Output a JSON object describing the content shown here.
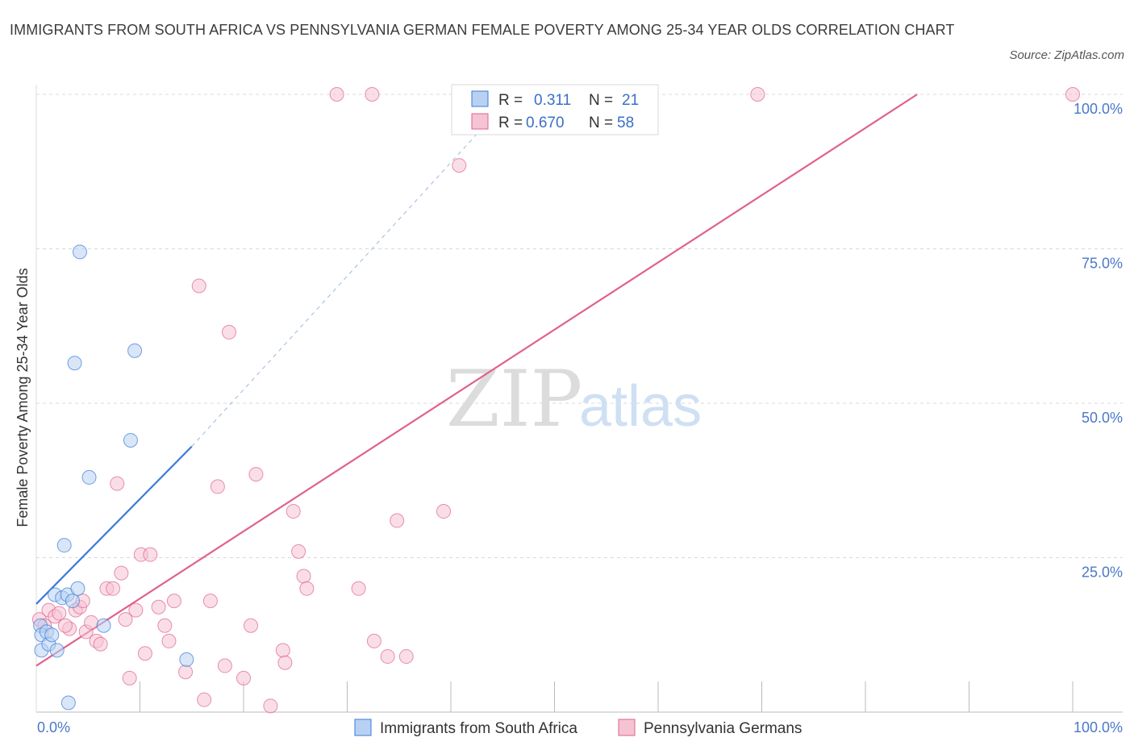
{
  "title": "IMMIGRANTS FROM SOUTH AFRICA VS PENNSYLVANIA GERMAN FEMALE POVERTY AMONG 25-34 YEAR OLDS CORRELATION CHART",
  "source": "Source: ZipAtlas.com",
  "watermark": {
    "zip": "ZIP",
    "atlas": "atlas"
  },
  "colors": {
    "blue": "#3a7bd5",
    "blue_fill": "#b8d1f3",
    "pink": "#e0628c",
    "pink_fill": "#f6c3d3",
    "grid": "#d9d9d9",
    "tick_text": "#4a78c8"
  },
  "legend": {
    "r_label": "R =",
    "n_label": "N =",
    "entries": [
      {
        "r": "0.311",
        "n": "21"
      },
      {
        "r": "0.670",
        "n": "58"
      }
    ]
  },
  "chart_data": {
    "type": "scatter",
    "title": "IMMIGRANTS FROM SOUTH AFRICA VS PENNSYLVANIA GERMAN FEMALE POVERTY AMONG 25-34 YEAR OLDS CORRELATION CHART",
    "xlabel": "",
    "ylabel": "Female Poverty Among 25-34 Year Olds",
    "xlim": [
      0,
      100
    ],
    "ylim": [
      0,
      100
    ],
    "x_tick_labels": [
      "0.0%",
      "100.0%"
    ],
    "y_tick_labels": [
      "100.0%",
      "75.0%",
      "50.0%",
      "25.0%"
    ],
    "y_ticks": [
      100,
      75,
      50,
      25
    ],
    "grid": true,
    "legend_position": "top-center",
    "series": [
      {
        "name": "Immigrants from South Africa",
        "color": "#3a7bd5",
        "r": 0.311,
        "n": 21,
        "trend": {
          "x": [
            0,
            15
          ],
          "y": [
            17.5,
            43
          ],
          "dashed_extension_to": [
            46,
            100
          ]
        },
        "points": [
          {
            "x": 0.4,
            "y": 14.0
          },
          {
            "x": 0.5,
            "y": 12.5
          },
          {
            "x": 0.5,
            "y": 10.0
          },
          {
            "x": 1.0,
            "y": 13.0
          },
          {
            "x": 1.2,
            "y": 11.0
          },
          {
            "x": 1.5,
            "y": 12.5
          },
          {
            "x": 2.0,
            "y": 10.0
          },
          {
            "x": 1.8,
            "y": 19.0
          },
          {
            "x": 2.5,
            "y": 18.5
          },
          {
            "x": 3.0,
            "y": 19.0
          },
          {
            "x": 3.5,
            "y": 18.0
          },
          {
            "x": 2.7,
            "y": 27.0
          },
          {
            "x": 4.0,
            "y": 20.0
          },
          {
            "x": 3.1,
            "y": 1.5
          },
          {
            "x": 3.7,
            "y": 56.5
          },
          {
            "x": 4.2,
            "y": 74.5
          },
          {
            "x": 5.1,
            "y": 38.0
          },
          {
            "x": 6.5,
            "y": 14.0
          },
          {
            "x": 9.1,
            "y": 44.0
          },
          {
            "x": 9.5,
            "y": 58.5
          },
          {
            "x": 14.5,
            "y": 8.5
          }
        ]
      },
      {
        "name": "Pennsylvania Germans",
        "color": "#e0628c",
        "r": 0.67,
        "n": 58,
        "trend": {
          "x": [
            0,
            85
          ],
          "y": [
            7.5,
            100
          ]
        },
        "points": [
          {
            "x": 0.3,
            "y": 15.0
          },
          {
            "x": 0.8,
            "y": 14.0
          },
          {
            "x": 1.2,
            "y": 16.5
          },
          {
            "x": 1.8,
            "y": 15.5
          },
          {
            "x": 2.2,
            "y": 16.0
          },
          {
            "x": 3.2,
            "y": 13.5
          },
          {
            "x": 3.8,
            "y": 16.5
          },
          {
            "x": 4.2,
            "y": 17.0
          },
          {
            "x": 4.8,
            "y": 13.0
          },
          {
            "x": 5.3,
            "y": 14.5
          },
          {
            "x": 5.8,
            "y": 11.5
          },
          {
            "x": 6.2,
            "y": 11.0
          },
          {
            "x": 6.8,
            "y": 20.0
          },
          {
            "x": 7.4,
            "y": 20.0
          },
          {
            "x": 7.8,
            "y": 37.0
          },
          {
            "x": 8.2,
            "y": 22.5
          },
          {
            "x": 8.6,
            "y": 15.0
          },
          {
            "x": 9.0,
            "y": 5.5
          },
          {
            "x": 9.6,
            "y": 16.5
          },
          {
            "x": 10.1,
            "y": 25.5
          },
          {
            "x": 10.5,
            "y": 9.5
          },
          {
            "x": 11.0,
            "y": 25.5
          },
          {
            "x": 11.8,
            "y": 17.0
          },
          {
            "x": 12.4,
            "y": 14.0
          },
          {
            "x": 12.8,
            "y": 11.5
          },
          {
            "x": 13.3,
            "y": 18.0
          },
          {
            "x": 14.4,
            "y": 6.5
          },
          {
            "x": 15.7,
            "y": 69.0
          },
          {
            "x": 16.2,
            "y": 2.0
          },
          {
            "x": 16.8,
            "y": 18.0
          },
          {
            "x": 17.5,
            "y": 36.5
          },
          {
            "x": 18.2,
            "y": 7.5
          },
          {
            "x": 18.6,
            "y": 61.5
          },
          {
            "x": 20.0,
            "y": 5.5
          },
          {
            "x": 20.7,
            "y": 14.0
          },
          {
            "x": 21.2,
            "y": 38.5
          },
          {
            "x": 22.6,
            "y": 1.0
          },
          {
            "x": 23.8,
            "y": 10.0
          },
          {
            "x": 24.0,
            "y": 8.0
          },
          {
            "x": 24.8,
            "y": 32.5
          },
          {
            "x": 25.3,
            "y": 26.0
          },
          {
            "x": 25.8,
            "y": 22.0
          },
          {
            "x": 26.1,
            "y": 20.0
          },
          {
            "x": 29.0,
            "y": 100.0
          },
          {
            "x": 31.1,
            "y": 20.0
          },
          {
            "x": 32.4,
            "y": 100.0
          },
          {
            "x": 32.6,
            "y": 11.5
          },
          {
            "x": 33.9,
            "y": 9.0
          },
          {
            "x": 34.8,
            "y": 31.0
          },
          {
            "x": 35.7,
            "y": 9.0
          },
          {
            "x": 39.3,
            "y": 32.5
          },
          {
            "x": 40.8,
            "y": 88.5
          },
          {
            "x": 42.0,
            "y": 100.0
          },
          {
            "x": 55.5,
            "y": 100.0
          },
          {
            "x": 69.6,
            "y": 100.0
          },
          {
            "x": 100.0,
            "y": 100.0
          },
          {
            "x": 4.5,
            "y": 18.0
          },
          {
            "x": 2.8,
            "y": 14.0
          }
        ]
      }
    ]
  }
}
